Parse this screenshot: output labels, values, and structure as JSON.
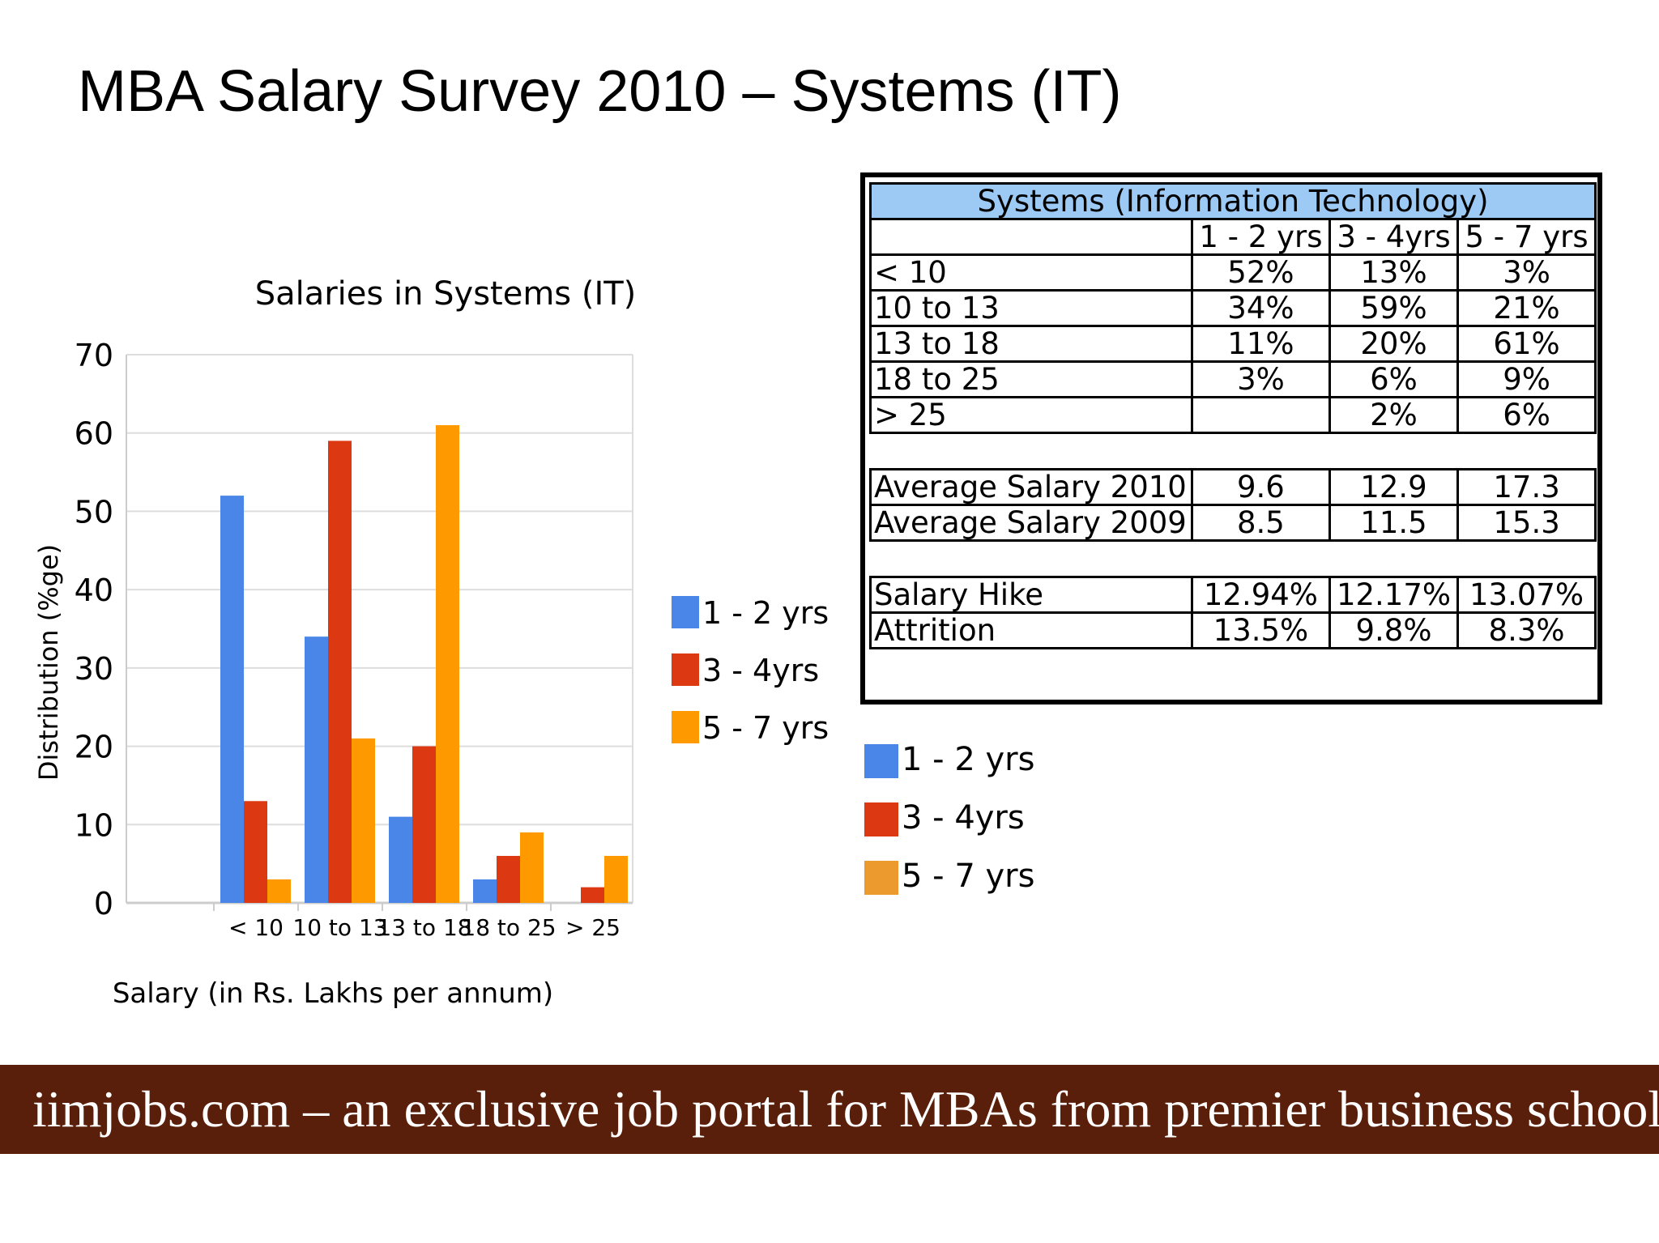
{
  "slide": {
    "title": "MBA Salary Survey 2010 – Systems (IT)",
    "footer": "iimjobs.com – an exclusive job portal for MBAs from premier business schools",
    "footer_color": "#5a1f0a"
  },
  "chart_data": {
    "type": "bar",
    "title": "Salaries in Systems (IT)",
    "xlabel": "Salary (in Rs. Lakhs per annum)",
    "ylabel": "Distribution (%ge)",
    "categories": [
      "< 10",
      "10 to 13",
      "13 to 18",
      "18 to 25",
      "> 25"
    ],
    "ylim": [
      0,
      70
    ],
    "yticks": [
      "0",
      "10",
      "20",
      "30",
      "40",
      "50",
      "60",
      "70"
    ],
    "grid": true,
    "legend": "right",
    "series": [
      {
        "name": "1 - 2 yrs",
        "color": "#4a86e8",
        "values": [
          52,
          34,
          11,
          3,
          0
        ]
      },
      {
        "name": "3 - 4yrs",
        "color": "#dc3912",
        "values": [
          13,
          59,
          20,
          6,
          2
        ]
      },
      {
        "name": "5 - 7 yrs",
        "color": "#ff9900",
        "values": [
          3,
          21,
          61,
          9,
          6
        ]
      }
    ]
  },
  "table": {
    "title": "Systems (Information Technology)",
    "header_color": "#9ccaf5",
    "columns": [
      "1 - 2 yrs",
      "3 - 4yrs",
      "5 - 7 yrs"
    ],
    "distribution_rows": [
      {
        "label": "< 10",
        "values": [
          "52%",
          "13%",
          "3%"
        ]
      },
      {
        "label": "10 to 13",
        "values": [
          "34%",
          "59%",
          "21%"
        ]
      },
      {
        "label": "13 to 18",
        "values": [
          "11%",
          "20%",
          "61%"
        ]
      },
      {
        "label": "18 to 25",
        "values": [
          "3%",
          "6%",
          "9%"
        ]
      },
      {
        "label": "> 25",
        "values": [
          "",
          "2%",
          "6%"
        ]
      }
    ],
    "salary_rows": [
      {
        "label": "Average Salary 2010",
        "values": [
          "9.6",
          "12.9",
          "17.3"
        ]
      },
      {
        "label": "Average Salary 2009",
        "values": [
          "8.5",
          "11.5",
          "15.3"
        ]
      }
    ],
    "hike_rows": [
      {
        "label": "Salary Hike",
        "values": [
          "12.94%",
          "12.17%",
          "13.07%"
        ]
      },
      {
        "label": "Attrition",
        "values": [
          "13.5%",
          "9.8%",
          "8.3%"
        ]
      }
    ]
  },
  "bottom_legend": [
    {
      "label": "1 - 2 yrs",
      "color": "#4a86e8"
    },
    {
      "label": "3 - 4yrs",
      "color": "#dc3912"
    },
    {
      "label": "5 - 7 yrs",
      "color": "#ec9a2e"
    }
  ]
}
